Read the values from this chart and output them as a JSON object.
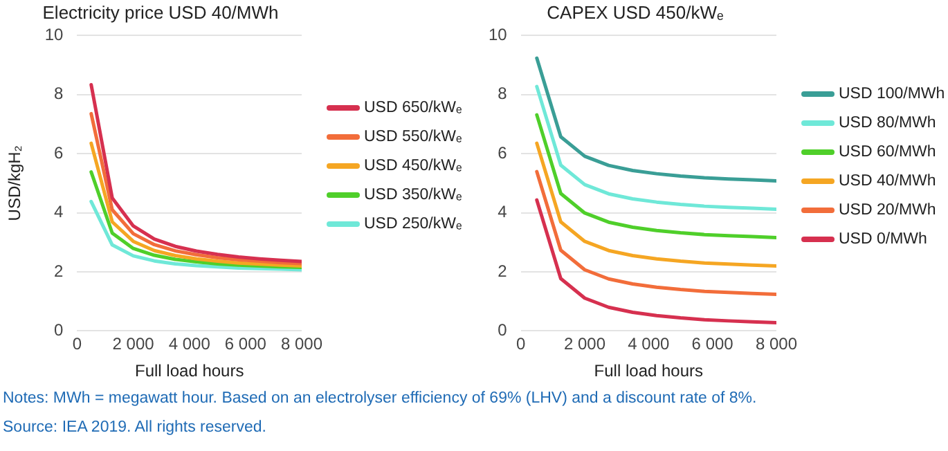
{
  "chart_data": [
    {
      "type": "line",
      "title": "Electricity price USD 40/MWh",
      "xlabel": "Full load hours",
      "ylabel": "USD/kgH₂",
      "x": [
        500,
        1250,
        2000,
        2750,
        3500,
        4250,
        5000,
        5750,
        6500,
        7250,
        8000
      ],
      "xlim": [
        0,
        8000
      ],
      "xticks": [
        {
          "value": 0,
          "label": "0"
        },
        {
          "value": 2000,
          "label": "2 000"
        },
        {
          "value": 4000,
          "label": "4 000"
        },
        {
          "value": 6000,
          "label": "6 000"
        },
        {
          "value": 8000,
          "label": "8 000"
        }
      ],
      "ylim": [
        0,
        10
      ],
      "yticks": [
        0,
        2,
        4,
        6,
        8,
        10
      ],
      "grid": "y",
      "legend": "right",
      "marker": "none",
      "series": [
        {
          "name": "USD 650/kWₑ",
          "color": "#d6304f",
          "values": [
            8.33,
            4.5,
            3.55,
            3.11,
            2.86,
            2.7,
            2.59,
            2.5,
            2.44,
            2.39,
            2.35
          ]
        },
        {
          "name": "USD 550/kWₑ",
          "color": "#f26d3a",
          "values": [
            7.35,
            4.1,
            3.29,
            2.92,
            2.71,
            2.58,
            2.48,
            2.41,
            2.36,
            2.31,
            2.28
          ]
        },
        {
          "name": "USD 450/kWₑ",
          "color": "#f5a623",
          "values": [
            6.35,
            3.69,
            3.03,
            2.72,
            2.55,
            2.44,
            2.36,
            2.3,
            2.26,
            2.23,
            2.2
          ]
        },
        {
          "name": "USD 350/kWₑ",
          "color": "#4fcf2a",
          "values": [
            5.38,
            3.31,
            2.79,
            2.56,
            2.42,
            2.34,
            2.27,
            2.23,
            2.2,
            2.17,
            2.15
          ]
        },
        {
          "name": "USD 250/kWₑ",
          "color": "#6fe8d8",
          "values": [
            4.38,
            2.91,
            2.54,
            2.37,
            2.27,
            2.21,
            2.17,
            2.13,
            2.11,
            2.09,
            2.07
          ]
        }
      ],
      "annotations": [
        "Notes: MWh = megawatt hour. Based on an electrolyser efficiency of 69% (LHV) and a discount rate of 8%.",
        "Source: IEA 2019. All rights reserved."
      ]
    },
    {
      "type": "line",
      "title": "CAPEX USD 450/kWₑ",
      "xlabel": "Full load hours",
      "x": [
        500,
        1250,
        2000,
        2750,
        3500,
        4250,
        5000,
        5750,
        6500,
        7250,
        8000
      ],
      "xlim": [
        0,
        8000
      ],
      "xticks": [
        {
          "value": 0,
          "label": "0"
        },
        {
          "value": 2000,
          "label": "2 000"
        },
        {
          "value": 4000,
          "label": "4 000"
        },
        {
          "value": 6000,
          "label": "6 000"
        },
        {
          "value": 8000,
          "label": "8 000"
        }
      ],
      "ylim": [
        0,
        10
      ],
      "yticks": [
        0,
        2,
        4,
        6,
        8,
        10
      ],
      "grid": "y",
      "legend": "right",
      "marker": "none",
      "series": [
        {
          "name": "USD 100/MWh",
          "color": "#3a9e96",
          "values": [
            9.23,
            6.57,
            5.91,
            5.6,
            5.43,
            5.32,
            5.24,
            5.18,
            5.14,
            5.11,
            5.08
          ]
        },
        {
          "name": "USD 80/MWh",
          "color": "#6fe8d8",
          "values": [
            8.27,
            5.61,
            4.95,
            4.64,
            4.47,
            4.36,
            4.28,
            4.22,
            4.18,
            4.15,
            4.12
          ]
        },
        {
          "name": "USD 60/MWh",
          "color": "#4fcf2a",
          "values": [
            7.31,
            4.65,
            3.99,
            3.68,
            3.51,
            3.4,
            3.32,
            3.26,
            3.22,
            3.19,
            3.16
          ]
        },
        {
          "name": "USD 40/MWh",
          "color": "#f5a623",
          "values": [
            6.35,
            3.69,
            3.03,
            2.72,
            2.55,
            2.44,
            2.36,
            2.3,
            2.26,
            2.23,
            2.2
          ]
        },
        {
          "name": "USD 20/MWh",
          "color": "#f26d3a",
          "values": [
            5.39,
            2.73,
            2.07,
            1.76,
            1.59,
            1.48,
            1.4,
            1.34,
            1.3,
            1.27,
            1.24
          ]
        },
        {
          "name": "USD 0/MWh",
          "color": "#d6304f",
          "values": [
            4.43,
            1.77,
            1.11,
            0.8,
            0.63,
            0.52,
            0.44,
            0.38,
            0.34,
            0.31,
            0.28
          ]
        }
      ]
    }
  ]
}
